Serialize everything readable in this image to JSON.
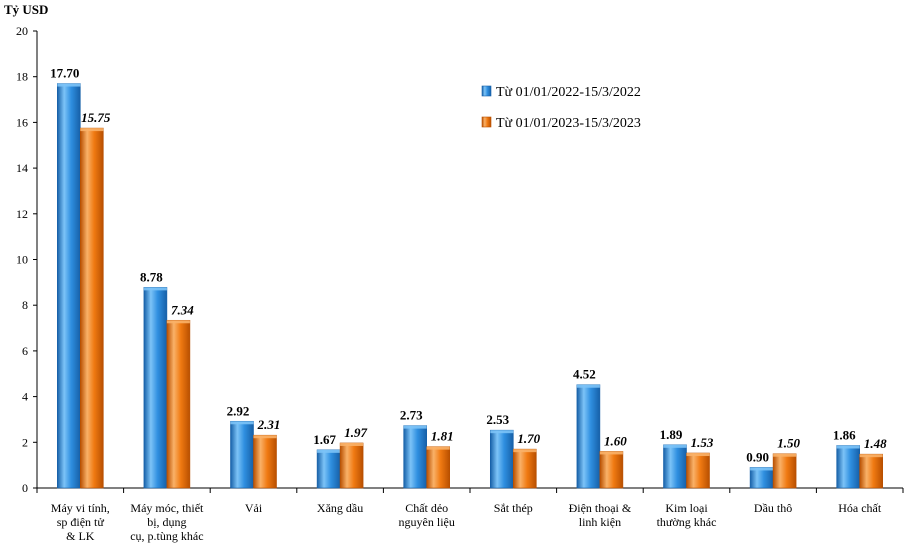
{
  "chart_data": {
    "type": "bar",
    "unit_label": "Tỷ USD",
    "ylim": [
      0,
      20
    ],
    "yticks": [
      0,
      2,
      4,
      6,
      8,
      10,
      12,
      14,
      16,
      18,
      20
    ],
    "grid": false,
    "legend_position": "top-right",
    "categories": [
      [
        "Máy vi tính,",
        "sp điện tử",
        "& LK"
      ],
      [
        "Máy móc, thiết",
        "bị, dụng",
        "cụ, p.tùng khác"
      ],
      [
        "Vải"
      ],
      [
        "Xăng dầu"
      ],
      [
        "Chất dẻo",
        "nguyên liệu"
      ],
      [
        "Sắt thép"
      ],
      [
        "Điện thoại &",
        "linh kiện"
      ],
      [
        "Kim loại",
        "thường khác"
      ],
      [
        "Dầu thô"
      ],
      [
        "Hóa chất"
      ]
    ],
    "series": [
      {
        "name": "Từ 01/01/2022-15/3/2022",
        "values": [
          17.7,
          8.78,
          2.92,
          1.67,
          2.73,
          2.53,
          4.52,
          1.89,
          0.9,
          1.86
        ],
        "labels": [
          "17.70",
          "8.78",
          "2.92",
          "1.67",
          "2.73",
          "2.53",
          "4.52",
          "1.89",
          "0.90",
          "1.86"
        ],
        "color": "#2f8fe0",
        "color_light": "#7cc3f7",
        "color_dark": "#1660a8"
      },
      {
        "name": "Từ 01/01/2023-15/3/2023",
        "values": [
          15.75,
          7.34,
          2.31,
          1.97,
          1.81,
          1.7,
          1.6,
          1.53,
          1.5,
          1.48
        ],
        "labels": [
          "15.75",
          "7.34",
          "2.31",
          "1.97",
          "1.81",
          "1.70",
          "1.60",
          "1.53",
          "1.50",
          "1.48"
        ],
        "color": "#f07a12",
        "color_light": "#f9b168",
        "color_dark": "#b84f00"
      }
    ]
  }
}
